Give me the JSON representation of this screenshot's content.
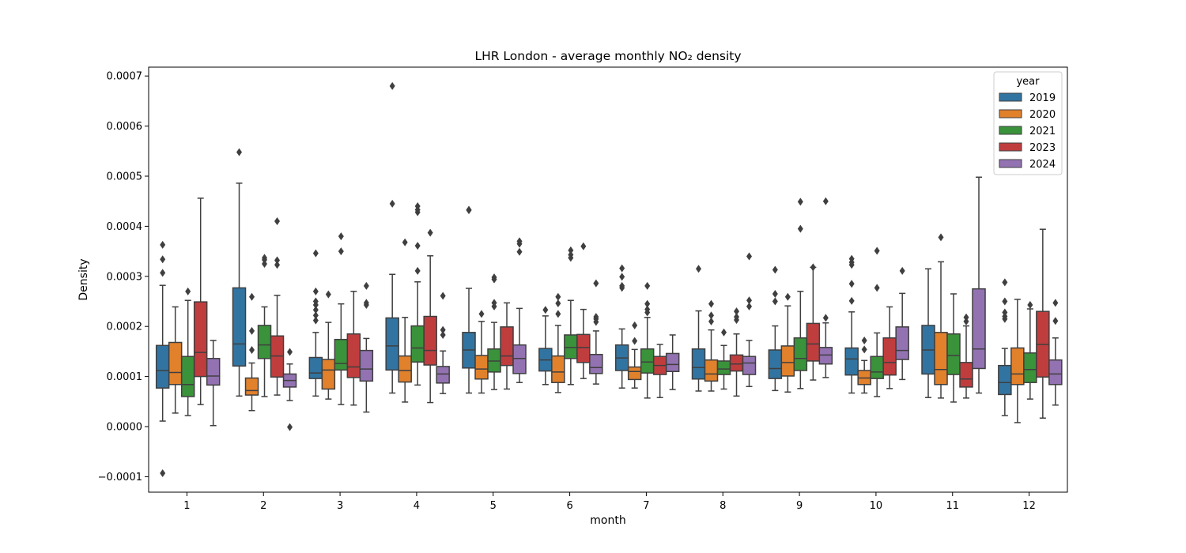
{
  "chart_data": {
    "type": "box",
    "title": "LHR London - average monthly NO₂ density",
    "xlabel": "month",
    "ylabel": "Density",
    "categories": [
      "1",
      "2",
      "3",
      "4",
      "5",
      "6",
      "7",
      "8",
      "9",
      "10",
      "11",
      "12"
    ],
    "ylim": [
      -0.000132,
      0.000712
    ],
    "yticks": [
      -0.0001,
      0.0,
      0.0001,
      0.0002,
      0.0003,
      0.0004,
      0.0005,
      0.0006,
      0.0007
    ],
    "ytick_labels": [
      "−0.0001",
      "0.0000",
      "0.0001",
      "0.0002",
      "0.0003",
      "0.0004",
      "0.0005",
      "0.0006",
      "0.0007"
    ],
    "grid": false,
    "legend": {
      "title": "year",
      "placement": "top-right"
    },
    "series": [
      {
        "name": "2019",
        "color": "#3274a1",
        "boxes": [
          {
            "whislo": 1.1e-05,
            "q1": 7.7e-05,
            "med": 0.000112,
            "q3": 0.000162,
            "whishi": 0.000282,
            "fliers": [
              0.000307,
              0.000334,
              0.000363,
              -9.3e-05
            ]
          },
          {
            "whislo": 6.1e-05,
            "q1": 0.000121,
            "med": 0.000165,
            "q3": 0.000277,
            "whishi": 0.000486,
            "fliers": [
              0.000548
            ]
          },
          {
            "whislo": 6.1e-05,
            "q1": 9.6e-05,
            "med": 0.000107,
            "q3": 0.000138,
            "whishi": 0.000188,
            "fliers": [
              0.000212,
              0.000222,
              0.000233,
              0.000243,
              0.00025,
              0.00027,
              0.000346
            ]
          },
          {
            "whislo": 6.7e-05,
            "q1": 0.000113,
            "med": 0.000161,
            "q3": 0.000217,
            "whishi": 0.000304,
            "fliers": [
              0.000445,
              0.00068
            ]
          },
          {
            "whislo": 6.7e-05,
            "q1": 0.000117,
            "med": 0.000153,
            "q3": 0.000188,
            "whishi": 0.000276,
            "fliers": [
              0.000432,
              0.000433
            ]
          },
          {
            "whislo": 8.4e-05,
            "q1": 0.000111,
            "med": 0.000133,
            "q3": 0.000156,
            "whishi": 0.000221,
            "fliers": [
              0.000233
            ]
          },
          {
            "whislo": 7.7e-05,
            "q1": 0.000112,
            "med": 0.000137,
            "q3": 0.000163,
            "whishi": 0.000195,
            "fliers": [
              0.000277,
              0.000281,
              0.000299,
              0.000316
            ]
          },
          {
            "whislo": 7.1e-05,
            "q1": 9.5e-05,
            "med": 0.000118,
            "q3": 0.000155,
            "whishi": 0.000231,
            "fliers": [
              0.000315
            ]
          },
          {
            "whislo": 7.2e-05,
            "q1": 9.6e-05,
            "med": 0.000116,
            "q3": 0.000153,
            "whishi": 0.000201,
            "fliers": [
              0.00025,
              0.000265,
              0.000313
            ]
          },
          {
            "whislo": 6.7e-05,
            "q1": 0.000103,
            "med": 0.000135,
            "q3": 0.000157,
            "whishi": 0.000229,
            "fliers": [
              0.000251,
              0.000285,
              0.000323,
              0.000328,
              0.000335
            ]
          },
          {
            "whislo": 5.8e-05,
            "q1": 0.000105,
            "med": 0.000153,
            "q3": 0.000202,
            "whishi": 0.000315,
            "fliers": []
          },
          {
            "whislo": 2.2e-05,
            "q1": 6.4e-05,
            "med": 8.8e-05,
            "q3": 0.000122,
            "whishi": 0.000156,
            "fliers": [
              0.000215,
              0.00022,
              0.000228,
              0.00025,
              0.000288
            ]
          }
        ]
      },
      {
        "name": "2020",
        "color": "#e1812c",
        "boxes": [
          {
            "whislo": 2.7e-05,
            "q1": 8.4e-05,
            "med": 0.000108,
            "q3": 0.000168,
            "whishi": 0.000239,
            "fliers": []
          },
          {
            "whislo": 3.2e-05,
            "q1": 6.3e-05,
            "med": 7.2e-05,
            "q3": 9.7e-05,
            "whishi": 0.000127,
            "fliers": [
              0.000153,
              0.000191,
              0.000259
            ]
          },
          {
            "whislo": 5.5e-05,
            "q1": 7.5e-05,
            "med": 0.000113,
            "q3": 0.000134,
            "whishi": 0.000208,
            "fliers": [
              0.000264
            ]
          },
          {
            "whislo": 4.9e-05,
            "q1": 8.9e-05,
            "med": 0.000112,
            "q3": 0.000141,
            "whishi": 0.000218,
            "fliers": [
              0.000368
            ]
          },
          {
            "whislo": 6.7e-05,
            "q1": 9.5e-05,
            "med": 0.000115,
            "q3": 0.000142,
            "whishi": 0.00021,
            "fliers": [
              0.000225
            ]
          },
          {
            "whislo": 6.8e-05,
            "q1": 8.8e-05,
            "med": 0.000109,
            "q3": 0.000141,
            "whishi": 0.000202,
            "fliers": [
              0.000225,
              0.000246,
              0.000259
            ]
          },
          {
            "whislo": 7.7e-05,
            "q1": 9.4e-05,
            "med": 0.00011,
            "q3": 0.000119,
            "whishi": 0.000154,
            "fliers": [
              0.000171,
              0.000202
            ]
          },
          {
            "whislo": 7.1e-05,
            "q1": 9.1e-05,
            "med": 0.000105,
            "q3": 0.000133,
            "whishi": 0.000193,
            "fliers": [
              0.00021,
              0.000222,
              0.000245
            ]
          },
          {
            "whislo": 6.9e-05,
            "q1": 0.000101,
            "med": 0.000128,
            "q3": 0.000161,
            "whishi": 0.000241,
            "fliers": [
              0.000259
            ]
          },
          {
            "whislo": 6.7e-05,
            "q1": 8.4e-05,
            "med": 9.7e-05,
            "q3": 0.000112,
            "whishi": 0.000132,
            "fliers": [
              0.000154,
              0.000172
            ]
          },
          {
            "whislo": 5.7e-05,
            "q1": 8.4e-05,
            "med": 0.000114,
            "q3": 0.000188,
            "whishi": 0.000329,
            "fliers": [
              0.000378
            ]
          },
          {
            "whislo": 8e-06,
            "q1": 8.4e-05,
            "med": 0.000105,
            "q3": 0.000157,
            "whishi": 0.000254,
            "fliers": []
          }
        ]
      },
      {
        "name": "2021",
        "color": "#3a923a",
        "boxes": [
          {
            "whislo": 2.2e-05,
            "q1": 6e-05,
            "med": 8.4e-05,
            "q3": 0.00014,
            "whishi": 0.000252,
            "fliers": [
              0.00027
            ]
          },
          {
            "whislo": 6e-05,
            "q1": 0.000136,
            "med": 0.000163,
            "q3": 0.000202,
            "whishi": 0.000239,
            "fliers": [
              0.000325,
              0.000333,
              0.000337
            ]
          },
          {
            "whislo": 4.4e-05,
            "q1": 0.000113,
            "med": 0.000126,
            "q3": 0.000174,
            "whishi": 0.000245,
            "fliers": [
              0.00035,
              0.00038
            ]
          },
          {
            "whislo": 8.3e-05,
            "q1": 0.000129,
            "med": 0.000157,
            "q3": 0.000201,
            "whishi": 0.000289,
            "fliers": [
              0.000311,
              0.000361,
              0.000428,
              0.000433,
              0.00044
            ]
          },
          {
            "whislo": 7.4e-05,
            "q1": 0.000109,
            "med": 0.000131,
            "q3": 0.000155,
            "whishi": 0.000208,
            "fliers": [
              0.00024,
              0.000247,
              0.000294,
              0.000298
            ]
          },
          {
            "whislo": 8.4e-05,
            "q1": 0.000136,
            "med": 0.000158,
            "q3": 0.000183,
            "whishi": 0.000252,
            "fliers": [
              0.000337,
              0.000343,
              0.000352
            ]
          },
          {
            "whislo": 5.7e-05,
            "q1": 0.000107,
            "med": 0.000129,
            "q3": 0.000155,
            "whishi": 0.000218,
            "fliers": [
              0.000228,
              0.000234,
              0.000245,
              0.000281
            ]
          },
          {
            "whislo": 7.5e-05,
            "q1": 0.000104,
            "med": 0.000115,
            "q3": 0.000131,
            "whishi": 0.000162,
            "fliers": [
              0.000188
            ]
          },
          {
            "whislo": 7.6e-05,
            "q1": 0.000112,
            "med": 0.000136,
            "q3": 0.000177,
            "whishi": 0.00027,
            "fliers": [
              0.000395,
              0.000449
            ]
          },
          {
            "whislo": 6e-05,
            "q1": 9.6e-05,
            "med": 0.000109,
            "q3": 0.00014,
            "whishi": 0.000187,
            "fliers": [
              0.000277,
              0.000351
            ]
          },
          {
            "whislo": 4.9e-05,
            "q1": 0.000104,
            "med": 0.000142,
            "q3": 0.000185,
            "whishi": 0.000265,
            "fliers": []
          },
          {
            "whislo": 5.5e-05,
            "q1": 8.8e-05,
            "med": 0.000114,
            "q3": 0.000147,
            "whishi": 0.000235,
            "fliers": [
              0.000243
            ]
          }
        ]
      },
      {
        "name": "2023",
        "color": "#c03d3e",
        "boxes": [
          {
            "whislo": 4.4e-05,
            "q1": 0.0001,
            "med": 0.000148,
            "q3": 0.000249,
            "whishi": 0.000456,
            "fliers": []
          },
          {
            "whislo": 6.3e-05,
            "q1": 9.9e-05,
            "med": 0.000141,
            "q3": 0.000181,
            "whishi": 0.000262,
            "fliers": [
              0.000323,
              0.000332,
              0.00041
            ]
          },
          {
            "whislo": 4.3e-05,
            "q1": 9.8e-05,
            "med": 0.000119,
            "q3": 0.000185,
            "whishi": 0.00027,
            "fliers": []
          },
          {
            "whislo": 4.8e-05,
            "q1": 0.000123,
            "med": 0.000152,
            "q3": 0.00022,
            "whishi": 0.000341,
            "fliers": [
              0.000387
            ]
          },
          {
            "whislo": 7.5e-05,
            "q1": 0.000122,
            "med": 0.000141,
            "q3": 0.000199,
            "whishi": 0.000247,
            "fliers": []
          },
          {
            "whislo": 9.6e-05,
            "q1": 0.000128,
            "med": 0.000158,
            "q3": 0.000184,
            "whishi": 0.000234,
            "fliers": [
              0.00036
            ]
          },
          {
            "whislo": 5.8e-05,
            "q1": 0.000104,
            "med": 0.000122,
            "q3": 0.00014,
            "whishi": 0.000164,
            "fliers": []
          },
          {
            "whislo": 6.1e-05,
            "q1": 0.000111,
            "med": 0.000125,
            "q3": 0.000143,
            "whishi": 0.000185,
            "fliers": [
              0.000213,
              0.000219,
              0.00023
            ]
          },
          {
            "whislo": 9.3e-05,
            "q1": 0.000131,
            "med": 0.000165,
            "q3": 0.000206,
            "whishi": 0.000318,
            "fliers": [
              0.000318
            ]
          },
          {
            "whislo": 7.6e-05,
            "q1": 0.000103,
            "med": 0.000128,
            "q3": 0.000177,
            "whishi": 0.000239,
            "fliers": []
          },
          {
            "whislo": 5.7e-05,
            "q1": 7.9e-05,
            "med": 9.5e-05,
            "q3": 0.000128,
            "whishi": 0.000201,
            "fliers": [
              0.00021,
              0.000218
            ]
          },
          {
            "whislo": 1.7e-05,
            "q1": 9.9e-05,
            "med": 0.000164,
            "q3": 0.00023,
            "whishi": 0.000394,
            "fliers": []
          }
        ]
      },
      {
        "name": "2024",
        "color": "#9372b2",
        "boxes": [
          {
            "whislo": 2e-06,
            "q1": 8.3e-05,
            "med": 0.000101,
            "q3": 0.000136,
            "whishi": 0.000172,
            "fliers": []
          },
          {
            "whislo": 5.2e-05,
            "q1": 7.9e-05,
            "med": 9.2e-05,
            "q3": 0.000105,
            "whishi": 0.000125,
            "fliers": [
              0.000149,
              -1e-06
            ]
          },
          {
            "whislo": 2.9e-05,
            "q1": 9.1e-05,
            "med": 0.000115,
            "q3": 0.000152,
            "whishi": 0.000176,
            "fliers": [
              0.000243,
              0.000247,
              0.000281
            ]
          },
          {
            "whislo": 6.6e-05,
            "q1": 8.7e-05,
            "med": 0.000105,
            "q3": 0.00012,
            "whishi": 0.000151,
            "fliers": [
              0.000183,
              0.000193,
              0.000261
            ]
          },
          {
            "whislo": 8.8e-05,
            "q1": 0.000106,
            "med": 0.000136,
            "q3": 0.000163,
            "whishi": 0.000236,
            "fliers": [
              0.000349,
              0.000365,
              0.00037
            ]
          },
          {
            "whislo": 8.5e-05,
            "q1": 0.000106,
            "med": 0.000118,
            "q3": 0.000144,
            "whishi": 0.000191,
            "fliers": [
              0.000209,
              0.000215,
              0.000219,
              0.000286
            ]
          },
          {
            "whislo": 7.4e-05,
            "q1": 0.00011,
            "med": 0.000124,
            "q3": 0.000146,
            "whishi": 0.000183,
            "fliers": []
          },
          {
            "whislo": 8e-05,
            "q1": 0.000104,
            "med": 0.000127,
            "q3": 0.00014,
            "whishi": 0.000172,
            "fliers": [
              0.00024,
              0.000252,
              0.00034
            ]
          },
          {
            "whislo": 9.8e-05,
            "q1": 0.000125,
            "med": 0.000143,
            "q3": 0.000158,
            "whishi": 0.000207,
            "fliers": [
              0.000217,
              0.00045
            ]
          },
          {
            "whislo": 9.4e-05,
            "q1": 0.000134,
            "med": 0.000152,
            "q3": 0.000199,
            "whishi": 0.000266,
            "fliers": [
              0.000311
            ]
          },
          {
            "whislo": 6.7e-05,
            "q1": 0.000116,
            "med": 0.000155,
            "q3": 0.000275,
            "whishi": 0.000498,
            "fliers": []
          },
          {
            "whislo": 4.3e-05,
            "q1": 8.4e-05,
            "med": 0.000105,
            "q3": 0.000133,
            "whishi": 0.000177,
            "fliers": [
              0.000211,
              0.000247
            ]
          }
        ]
      }
    ]
  }
}
